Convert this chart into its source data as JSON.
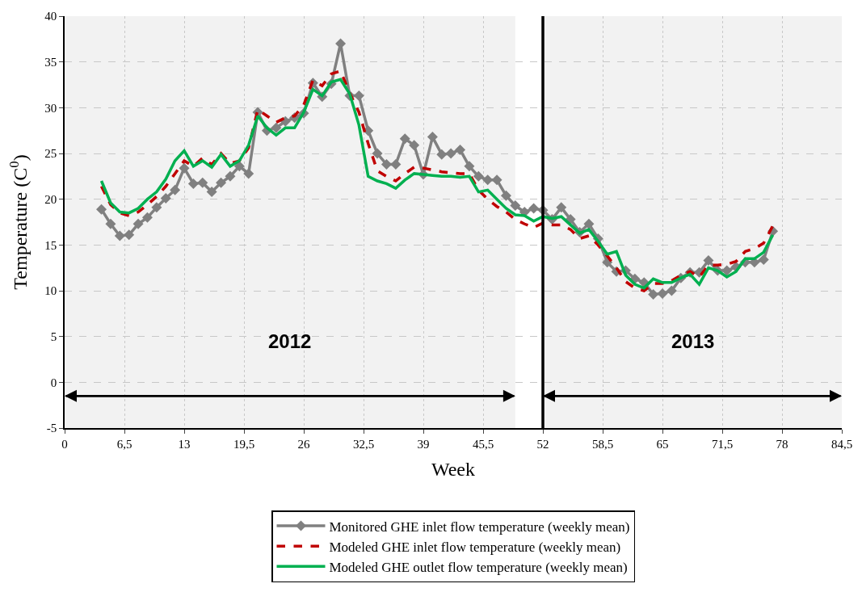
{
  "chart_data": {
    "type": "line",
    "xlabel": "Week",
    "ylabel": "Temperature (C$^{0}$)",
    "x": [
      4,
      5,
      6,
      7,
      8,
      9,
      10,
      11,
      12,
      13,
      14,
      15,
      16,
      17,
      18,
      19,
      20,
      21,
      22,
      23,
      24,
      25,
      26,
      27,
      28,
      29,
      30,
      31,
      32,
      33,
      34,
      35,
      36,
      37,
      38,
      39,
      40,
      41,
      42,
      43,
      44,
      45,
      46,
      47,
      48,
      49,
      50,
      51,
      52,
      53,
      54,
      55,
      56,
      57,
      58,
      59,
      60,
      61,
      62,
      63,
      64,
      65,
      66,
      67,
      68,
      69,
      70,
      71,
      72,
      73,
      74,
      75,
      76,
      77
    ],
    "series": [
      {
        "name": "Monitored GHE inlet flow temperature (weekly mean)",
        "color": "#808080",
        "marker": "diamond",
        "line_style": "solid",
        "values": [
          18.9,
          17.3,
          16.0,
          16.1,
          17.3,
          18.0,
          19.1,
          20.1,
          21.0,
          23.4,
          21.7,
          21.8,
          20.8,
          21.8,
          22.5,
          23.6,
          22.8,
          29.5,
          27.5,
          27.8,
          28.5,
          28.9,
          29.4,
          32.7,
          31.2,
          32.6,
          37.0,
          31.3,
          31.3,
          27.5,
          25.0,
          23.8,
          23.8,
          26.6,
          25.9,
          22.7,
          26.8,
          24.9,
          25.0,
          25.4,
          23.6,
          22.5,
          22.1,
          22.1,
          20.4,
          19.3,
          18.6,
          19.0,
          18.8,
          17.8,
          19.1,
          17.8,
          16.4,
          17.3,
          15.7,
          13.1,
          12.1,
          12.2,
          11.3,
          10.9,
          9.6,
          9.7,
          10.0,
          11.4,
          12.0,
          12.0,
          13.3,
          12.2,
          12.2,
          12.6,
          13.1,
          13.1,
          13.4,
          16.5
        ]
      },
      {
        "name": "Modeled GHE inlet flow temperature (weekly mean)",
        "color": "#c00000",
        "marker": "none",
        "line_style": "dashed",
        "values": [
          21.4,
          19.4,
          18.5,
          18.2,
          18.6,
          19.4,
          20.3,
          21.4,
          22.8,
          24.2,
          23.6,
          24.5,
          23.8,
          25.0,
          23.9,
          24.2,
          25.6,
          29.8,
          29.1,
          28.4,
          28.9,
          29.1,
          30.3,
          33.0,
          32.4,
          33.7,
          34.0,
          31.6,
          29.5,
          26.1,
          23.1,
          22.5,
          22.0,
          22.8,
          23.5,
          23.4,
          23.2,
          23.0,
          22.9,
          22.8,
          22.8,
          21.0,
          20.0,
          19.2,
          18.6,
          17.8,
          17.3,
          16.9,
          17.4,
          17.2,
          17.2,
          16.7,
          15.7,
          16.0,
          15.0,
          13.8,
          12.5,
          11.0,
          10.3,
          10.0,
          10.8,
          10.8,
          11.1,
          11.7,
          12.1,
          11.5,
          12.8,
          12.8,
          12.9,
          13.2,
          14.3,
          14.6,
          15.2,
          17.1
        ]
      },
      {
        "name": "Modeled GHE outlet flow temperature (weekly mean)",
        "color": "#00b050",
        "marker": "none",
        "line_style": "solid",
        "values": [
          22.0,
          19.6,
          18.6,
          18.5,
          19.0,
          20.0,
          20.8,
          22.2,
          24.2,
          25.3,
          23.6,
          24.2,
          23.5,
          24.9,
          23.6,
          24.2,
          25.9,
          29.1,
          27.8,
          27.0,
          27.8,
          27.8,
          29.5,
          32.0,
          31.3,
          32.8,
          33.1,
          31.5,
          28.1,
          22.5,
          22.0,
          21.7,
          21.2,
          22.1,
          22.8,
          22.7,
          22.6,
          22.5,
          22.5,
          22.4,
          22.5,
          20.8,
          21.0,
          20.0,
          19.0,
          18.3,
          18.2,
          17.6,
          18.1,
          17.9,
          18.1,
          17.2,
          16.3,
          16.7,
          15.4,
          14.0,
          14.3,
          11.7,
          10.7,
          10.3,
          11.3,
          10.9,
          10.9,
          11.4,
          11.8,
          10.7,
          12.5,
          12.2,
          11.5,
          12.1,
          13.5,
          13.5,
          14.2,
          16.1
        ]
      }
    ],
    "xlim": [
      0,
      84.5
    ],
    "xticks": [
      0,
      {
        "value": 6.5,
        "label": "6,5"
      },
      13,
      {
        "value": 19.5,
        "label": "19,5"
      },
      26,
      {
        "value": 32.5,
        "label": "32,5"
      },
      39,
      {
        "value": 45.5,
        "label": "45,5"
      },
      52,
      {
        "value": 58.5,
        "label": "58,5"
      },
      65,
      {
        "value": 71.5,
        "label": "71,5"
      },
      78,
      {
        "value": 84.5,
        "label": "84,5"
      }
    ],
    "ylim": [
      -5,
      40
    ],
    "yticks": [
      -5,
      0,
      5,
      10,
      15,
      20,
      25,
      30,
      35,
      40
    ],
    "grid": true,
    "legend": "bottom",
    "ref_lines": [
      {
        "axis": "x",
        "value": 52,
        "color": "#000000",
        "line_style": "solid"
      }
    ],
    "bands": [
      {
        "axis": "x",
        "from": 0,
        "to": 49,
        "label": "2012",
        "color": "#000000"
      },
      {
        "axis": "x",
        "from": 52,
        "to": 84.5,
        "label": "2013",
        "color": "#000000"
      }
    ]
  }
}
